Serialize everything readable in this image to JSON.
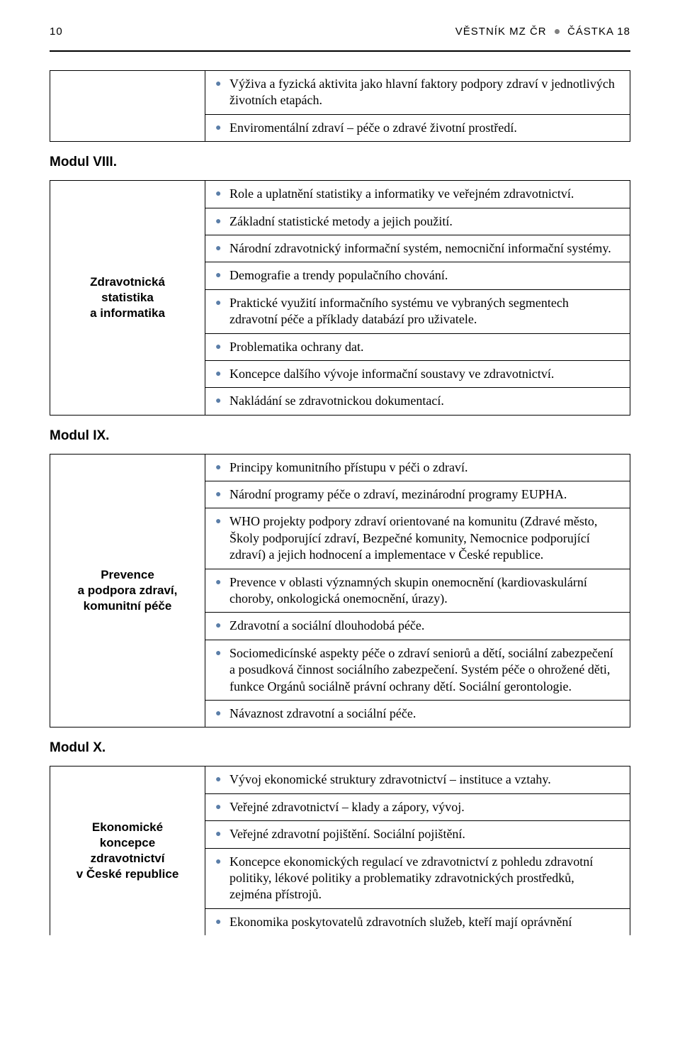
{
  "header": {
    "page_number": "10",
    "journal": "VĚSTNÍK MZ ČR",
    "issue": "ČÁSTKA 18"
  },
  "color": {
    "bullet": "#5b7ea8",
    "dot": "#808080"
  },
  "intro_table": {
    "left_blank": "",
    "rows": [
      "Výživa a fyzická aktivita jako hlavní faktory podpory zdraví v jednotlivých životních etapách.",
      "Enviromentální zdraví – péče o zdravé životní prostředí."
    ]
  },
  "modules": [
    {
      "heading": "Modul VIII.",
      "left": "Zdravotnická\nstatistika\na informatika",
      "rows": [
        "Role a uplatnění statistiky a informatiky ve veřejném zdravotnictví.",
        "Základní statistické metody a jejich použití.",
        "Národní zdravotnický informační systém, nemocniční informační systémy.",
        "Demografie a trendy populačního chování.",
        "Praktické využití informačního systému ve vybraných segmentech zdravotní péče a příklady databází pro uživatele.",
        "Problematika ochrany dat.",
        "Koncepce dalšího vývoje informační soustavy ve zdravotnictví.",
        "Nakládání se zdravotnickou dokumentací."
      ]
    },
    {
      "heading": "Modul IX.",
      "left": "Prevence\na podpora zdraví,\nkomunitní péče",
      "rows": [
        "Principy komunitního přístupu v péči o zdraví.",
        "Národní programy péče o zdraví, mezinárodní programy EUPHA.",
        "WHO projekty podpory zdraví orientované na komunitu (Zdravé město, Školy podporující zdraví, Bezpečné komunity, Nemocnice podporující zdraví) a jejich hodnocení a implementace v České republice.",
        "Prevence v oblasti významných skupin onemocnění (kardiovaskulární choroby, onkologická onemocnění, úrazy).",
        "Zdravotní a sociální dlouhodobá péče.",
        "Sociomedicínské aspekty péče o zdraví seniorů a dětí, sociální zabezpečení a posudková činnost sociálního zabezpečení. Systém péče o ohrožené děti, funkce Orgánů sociálně právní ochrany dětí. Sociální gerontologie.",
        "Návaznost zdravotní a sociální péče."
      ]
    },
    {
      "heading": "Modul X.",
      "left": "Ekonomické\nkoncepce\nzdravotnictví\nv České republice",
      "rows": [
        "Vývoj ekonomické struktury zdravotnictví – instituce a vztahy.",
        "Veřejné zdravotnictví – klady a zápory, vývoj.",
        "Veřejné zdravotní pojištění. Sociální pojištění.",
        "Koncepce ekonomických regulací ve zdravotnictví z pohledu zdravotní politiky, lékové politiky a problematiky zdravotnických prostředků, zejména přístrojů.",
        "Ekonomika poskytovatelů zdravotních služeb, kteří mají oprávnění"
      ]
    }
  ]
}
